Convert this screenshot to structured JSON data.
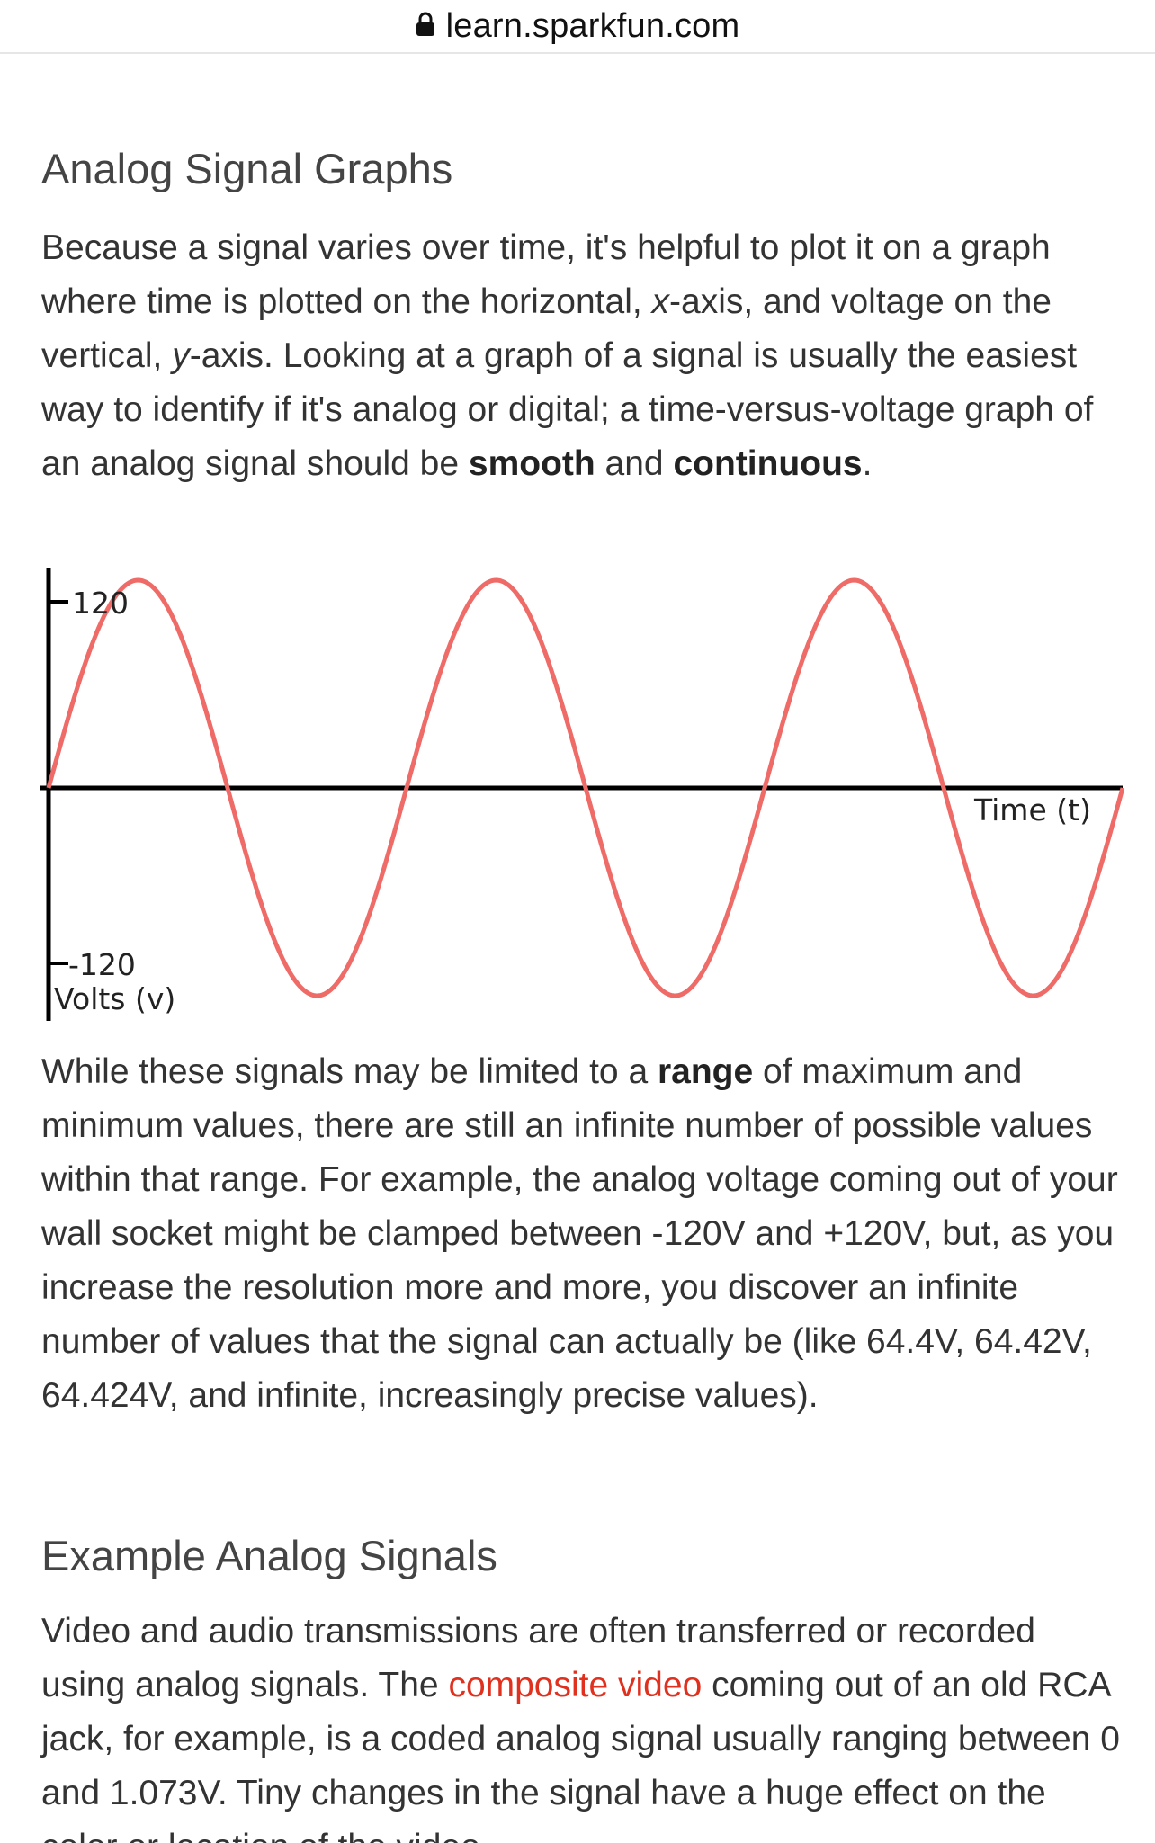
{
  "browser": {
    "lock_icon": "lock-icon",
    "domain": "learn.sparkfun.com"
  },
  "section1": {
    "heading": "Analog Signal Graphs",
    "intro": {
      "t1": "Because a signal varies over time, it's helpful to plot it on a graph where time is plotted on the horizontal, ",
      "x_em": "x",
      "t2": "-axis, and voltage on the vertical, ",
      "y_em": "y",
      "t3": "-axis. Looking at a graph of a signal is usually the easiest way to identify if it's analog or digital; a time-versus-voltage graph of an analog signal should be ",
      "smooth": "smooth",
      "and": " and ",
      "continuous": "continuous",
      "end": "."
    }
  },
  "chart_data": {
    "type": "line",
    "xlabel": "Time (t)",
    "ylabel": "Volts (v)",
    "y_ticks": [
      "120",
      "-120"
    ],
    "ylim": [
      -120,
      120
    ],
    "series": [
      {
        "color": "#ef6b67",
        "shape": "sine",
        "amplitude": 120,
        "cycles": 3,
        "phase": 0
      }
    ],
    "grid": false
  },
  "section2": {
    "range_para": {
      "t1": "While these signals may be limited to a ",
      "range": "range",
      "t2": " of maximum and minimum values, there are still an infinite number of possible values within that range. For example, the analog voltage coming out of your wall socket might be clamped between -120V and +120V, but, as you increase the resolution more and more, you discover an infinite number of values that the signal can actually be (like 64.4V, 64.42V, 64.424V, and infinite, increasingly precise values)."
    }
  },
  "section3": {
    "heading": "Example Analog Signals",
    "para": {
      "t1": "Video and audio transmissions are often transferred or recorded using analog signals. The ",
      "link": "composite video",
      "t2": " coming out of an old RCA jack, for example, is a coded analog signal usually ranging between 0 and 1.073V. Tiny changes in the signal have a huge effect on the color or location of the video."
    }
  },
  "colors": {
    "link": "#e0311f",
    "signal": "#ef6b67",
    "axis": "#000000"
  }
}
